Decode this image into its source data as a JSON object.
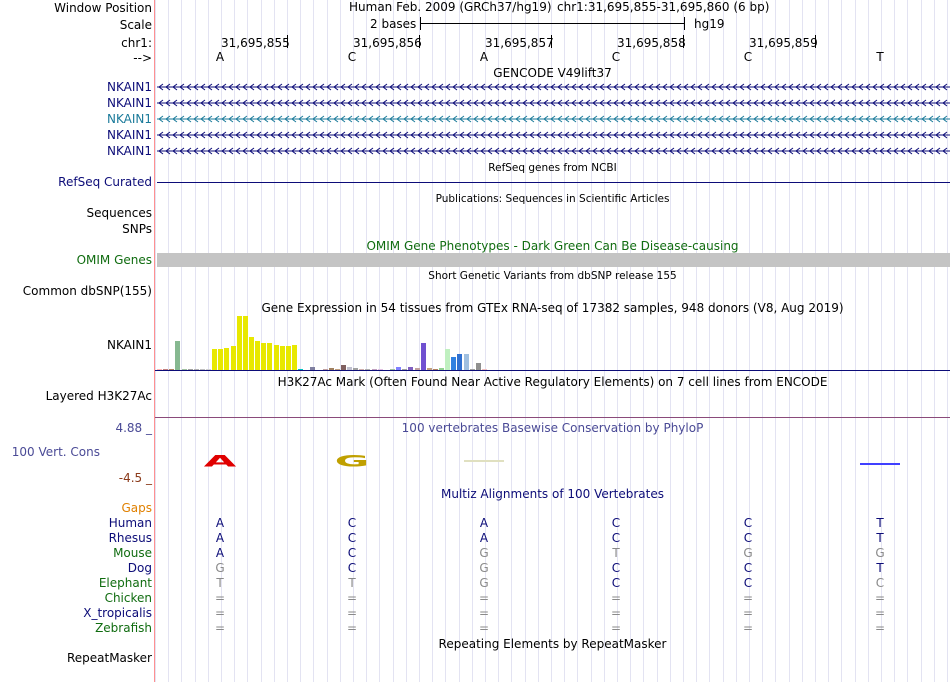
{
  "header": {
    "window_position_label": "Window Position",
    "scale_label": "Scale",
    "chrom_label": "chr1:",
    "strand_label": "-->",
    "assembly_text": "Human Feb. 2009 (GRCh37/hg19)",
    "position_text": "chr1:31,695,855-31,695,860 (6 bp)",
    "scale_text": "2 bases",
    "db_text": "hg19",
    "coords": [
      "31,695,855",
      "31,695,856",
      "31,695,857",
      "31,695,858",
      "31,695,859"
    ],
    "bases": [
      "A",
      "C",
      "A",
      "C",
      "C",
      "T"
    ]
  },
  "gencode": {
    "title": "GENCODE V49lift37",
    "rows": [
      {
        "label": "NKAIN1",
        "color": "#0c0c78"
      },
      {
        "label": "NKAIN1",
        "color": "#0c0c78"
      },
      {
        "label": "NKAIN1",
        "color": "#1a7a9a"
      },
      {
        "label": "NKAIN1",
        "color": "#0c0c78"
      },
      {
        "label": "NKAIN1",
        "color": "#0c0c78"
      }
    ]
  },
  "refseq": {
    "title": "RefSeq genes from NCBI",
    "label": "RefSeq Curated"
  },
  "publications": {
    "title": "Publications: Sequences in Scientific Articles",
    "label_sequences": "Sequences",
    "label_snps": "SNPs"
  },
  "omim": {
    "title": "OMIM Gene Phenotypes - Dark Green Can Be Disease-causing",
    "label": "OMIM Genes"
  },
  "dbsnp": {
    "title": "Short Genetic Variants from dbSNP release 155",
    "label": "Common dbSNP(155)"
  },
  "gtex": {
    "title": "Gene Expression in 54 tissues from GTEx RNA-seq of 17382 samples, 948 donors (V8, Aug 2019)",
    "label": "NKAIN1",
    "values": [
      0.04,
      0.04,
      0.03,
      0.55,
      0.04,
      0.03,
      0.03,
      0.03,
      0.03,
      0.4,
      0.4,
      0.42,
      0.46,
      1.0,
      1.0,
      0.62,
      0.55,
      0.5,
      0.5,
      0.48,
      0.46,
      0.45,
      0.47,
      0.04,
      0.02,
      0.07,
      0.02,
      0.04,
      0.06,
      0.03,
      0.11,
      0.07,
      0.05,
      0.03,
      0.04,
      0.04,
      0.03,
      0.02,
      0.04,
      0.07,
      0.04,
      0.08,
      0.05,
      0.5,
      0.05,
      0.03,
      0.06,
      0.4,
      0.25,
      0.3,
      0.3,
      0.03,
      0.15,
      0.04
    ],
    "colors": [
      "#ffb8b8",
      "#c08080",
      "#b08060",
      "#86b890",
      "#a0c0a0",
      "#a0a0a0",
      "#b0b0b0",
      "#c0c0c0",
      "#d0d0d0",
      "#e8e800",
      "#e8e800",
      "#e8e800",
      "#e8e800",
      "#e8e800",
      "#e8e800",
      "#e8e800",
      "#e8e800",
      "#e8e800",
      "#e8e800",
      "#e8e800",
      "#e8e800",
      "#e8e800",
      "#e8e800",
      "#00c0c0",
      "#c0c0ff",
      "#8080a0",
      "#a0a0c0",
      "#c0a0a0",
      "#a08060",
      "#c0a080",
      "#806060",
      "#c0c0d0",
      "#a0a0a0",
      "#d0b0b0",
      "#b0b0b0",
      "#c0a0c0",
      "#e0c0e0",
      "#c0c0c0",
      "#a0c0a0",
      "#8080ff",
      "#a0a0a0",
      "#8060c0",
      "#c0a0a0",
      "#7050d0",
      "#c0a080",
      "#b08060",
      "#90d090",
      "#c0f0c0",
      "#3080e0",
      "#3070d0",
      "#a0c0e0",
      "#a0a0a0",
      "#909090",
      "#f0c0c0"
    ]
  },
  "h3k27ac": {
    "title": "H3K27Ac Mark (Often Found Near Active Regulatory Elements) on 7 cell lines from ENCODE",
    "label": "Layered H3K27Ac"
  },
  "conservation": {
    "title": "100 vertebrates Basewise Conservation by PhyloP",
    "label": "100 Vert. Cons",
    "max_label": "4.88 _",
    "min_label": "-4.5 _",
    "logo_letters": [
      "A",
      "G",
      "",
      "",
      "",
      ""
    ],
    "logo_colors": [
      "#e00000",
      "#c0a000",
      "#e0e0c0",
      "",
      "",
      "#4040ff"
    ]
  },
  "multiz": {
    "title": "Multiz Alignments of 100 Vertebrates",
    "gaps_label": "Gaps",
    "species": [
      {
        "name": "Human",
        "color": "#0c0c78",
        "bases": [
          "A",
          "C",
          "A",
          "C",
          "C",
          "T"
        ]
      },
      {
        "name": "Rhesus",
        "color": "#0c0c78",
        "bases": [
          "A",
          "C",
          "A",
          "C",
          "C",
          "T"
        ]
      },
      {
        "name": "Mouse",
        "color": "#106c10",
        "bases": [
          "A",
          "C",
          "G",
          "T",
          "G",
          "G"
        ]
      },
      {
        "name": "Dog",
        "color": "#0c0c78",
        "bases": [
          "G",
          "C",
          "G",
          "C",
          "C",
          "T"
        ]
      },
      {
        "name": "Elephant",
        "color": "#106c10",
        "bases": [
          "T",
          "T",
          "G",
          "C",
          "C",
          "C"
        ]
      },
      {
        "name": "Chicken",
        "color": "#106c10",
        "bases": [
          "=",
          "=",
          "=",
          "=",
          "=",
          "="
        ]
      },
      {
        "name": "X_tropicalis",
        "color": "#0c0c78",
        "bases": [
          "=",
          "=",
          "=",
          "=",
          "=",
          "="
        ]
      },
      {
        "name": "Zebrafish",
        "color": "#106c10",
        "bases": [
          "=",
          "=",
          "=",
          "=",
          "=",
          "="
        ]
      }
    ],
    "faded": [
      [
        false,
        false,
        false,
        false,
        false,
        false
      ],
      [
        false,
        false,
        false,
        false,
        false,
        false
      ],
      [
        false,
        false,
        true,
        true,
        true,
        true
      ],
      [
        true,
        false,
        true,
        false,
        false,
        false
      ],
      [
        true,
        true,
        true,
        false,
        false,
        true
      ],
      [
        true,
        true,
        true,
        true,
        true,
        true
      ],
      [
        true,
        true,
        true,
        true,
        true,
        true
      ],
      [
        true,
        true,
        true,
        true,
        true,
        true
      ]
    ]
  },
  "repeatmasker": {
    "title": "Repeating Elements by RepeatMasker",
    "label": "RepeatMasker"
  },
  "colors": {
    "navy": "#0c0c78",
    "green": "#106c10",
    "orange": "#e08000",
    "purple": "#4a4a96",
    "brown": "#8b3a1a",
    "grey": "#888888"
  }
}
